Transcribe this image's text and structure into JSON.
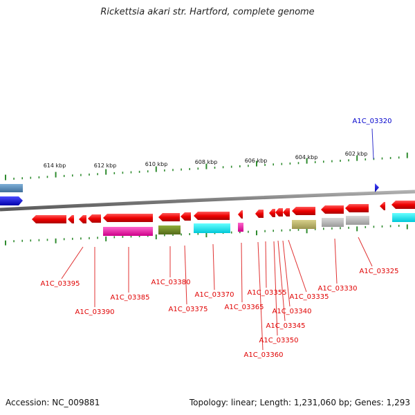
{
  "title": "Rickettsia akari str. Hartford, complete genome",
  "footer": {
    "accession": "Accession: NC_009881",
    "summary": "Topology: linear; Length: 1,231,060 bp; Genes: 1,293"
  },
  "colors": {
    "backbone": "#8a8a8a",
    "ticks": "#2e8b2e",
    "gene": "#e60000",
    "gene_highlight": "#0000cc",
    "label_red": "#e00000",
    "label_blue": "#0000cc",
    "leader_red": "#e03030",
    "leader_blue": "#3030cc"
  },
  "scale_labels": [
    "614 kbp",
    "612 kbp",
    "610 kbp",
    "608 kbp",
    "606 kbp",
    "604 kbp",
    "602 kbp"
  ],
  "genes": [
    {
      "label": "A1C_03395",
      "color": "#e00000"
    },
    {
      "label": "A1C_03390",
      "color": "#e00000"
    },
    {
      "label": "A1C_03385",
      "color": "#e00000"
    },
    {
      "label": "A1C_03380",
      "color": "#e00000"
    },
    {
      "label": "A1C_03375",
      "color": "#e00000"
    },
    {
      "label": "A1C_03370",
      "color": "#e00000"
    },
    {
      "label": "A1C_03365",
      "color": "#e00000"
    },
    {
      "label": "A1C_03360",
      "color": "#e00000"
    },
    {
      "label": "A1C_03355",
      "color": "#e00000"
    },
    {
      "label": "A1C_03350",
      "color": "#e00000"
    },
    {
      "label": "A1C_03345",
      "color": "#e00000"
    },
    {
      "label": "A1C_03340",
      "color": "#e00000"
    },
    {
      "label": "A1C_03335",
      "color": "#e00000"
    },
    {
      "label": "A1C_03330",
      "color": "#e00000"
    },
    {
      "label": "A1C_03325",
      "color": "#e00000"
    },
    {
      "label": "A1C_03320",
      "color": "#0000cc"
    }
  ]
}
